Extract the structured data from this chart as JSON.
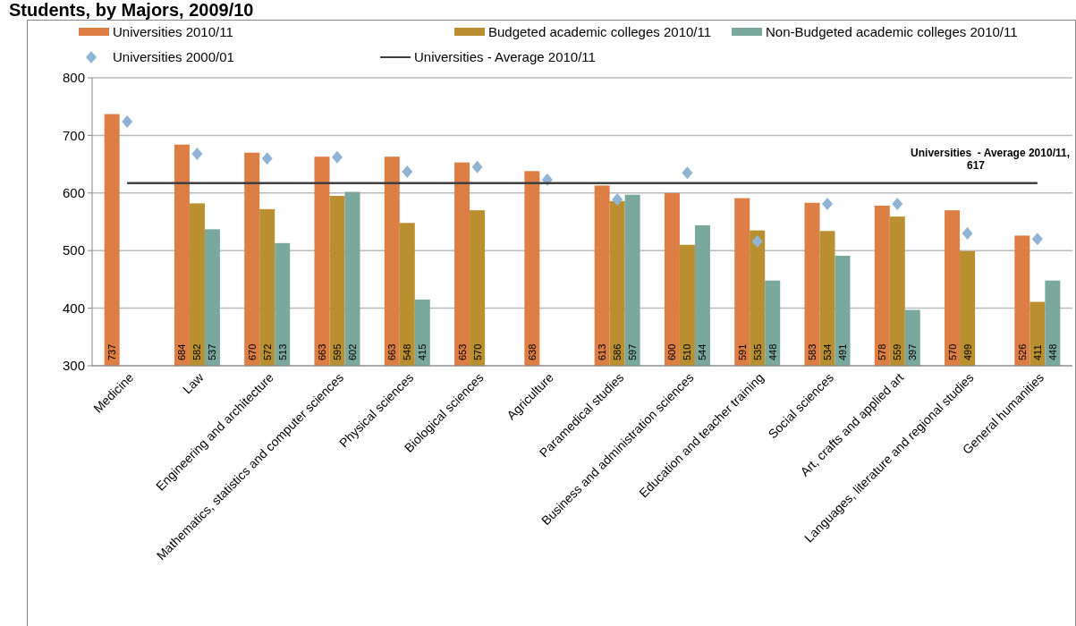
{
  "chart_data": {
    "type": "bar",
    "title": "Students, by Majors, 2009/10",
    "categories": [
      "Medicine",
      "Law",
      "Engineering and architecture",
      "Mathematics, statistics and computer sciences",
      "Physical sciences",
      "Biological sciences",
      "Agriculture",
      "Paramedical studies",
      "Business and administration sciences",
      "Education and teacher training",
      "Social sciences",
      "Art, crafts and applied art",
      "Languages, literature and regional studies",
      "General humanities"
    ],
    "series": [
      {
        "name": "Universities 2010/11",
        "color": "#dd7e45",
        "values": [
          737,
          684,
          670,
          663,
          663,
          653,
          638,
          613,
          600,
          591,
          583,
          578,
          570,
          526
        ],
        "value_labels": [
          "737",
          "684",
          "670",
          "663",
          "663",
          "653",
          "638",
          "613",
          "600",
          "591",
          "583",
          "578",
          "570",
          "526"
        ]
      },
      {
        "name": "Budgeted academic colleges 2010/11",
        "color": "#b98f2f",
        "values": [
          null,
          582,
          572,
          595,
          548,
          570,
          null,
          586,
          510,
          535,
          534,
          559,
          499,
          411
        ],
        "value_labels": [
          null,
          "582",
          "572",
          "595",
          "548",
          "570",
          null,
          "586",
          "510",
          "535",
          "534",
          "559",
          "499",
          "411"
        ]
      },
      {
        "name": "Non-Budgeted academic colleges 2010/11",
        "color": "#7ba89c",
        "values": [
          null,
          537,
          513,
          602,
          415,
          null,
          null,
          597,
          544,
          448,
          491,
          397,
          null,
          448
        ],
        "value_labels": [
          null,
          "537",
          "513",
          "602",
          "415",
          null,
          null,
          "597",
          "544",
          "448",
          "491",
          "397",
          null,
          "448"
        ]
      },
      {
        "name": "Universities 2000/01",
        "type": "scatter",
        "marker": "diamond",
        "color": "#92b4d4",
        "values": [
          724,
          668,
          660,
          662,
          637,
          645,
          623,
          589,
          635,
          516,
          581,
          581,
          530,
          520
        ]
      },
      {
        "name": "Universities - Average 2010/11",
        "type": "line",
        "color": "#404040",
        "values": [
          617,
          617,
          617,
          617,
          617,
          617,
          617,
          617,
          617,
          617,
          617,
          617,
          617,
          617
        ]
      }
    ],
    "annotations": [
      "Universities  - Average 2010/11, 617"
    ],
    "ylim": [
      300,
      800
    ],
    "yticks": [
      300,
      400,
      500,
      600,
      700,
      800
    ],
    "grid": "y",
    "legend": "top"
  }
}
